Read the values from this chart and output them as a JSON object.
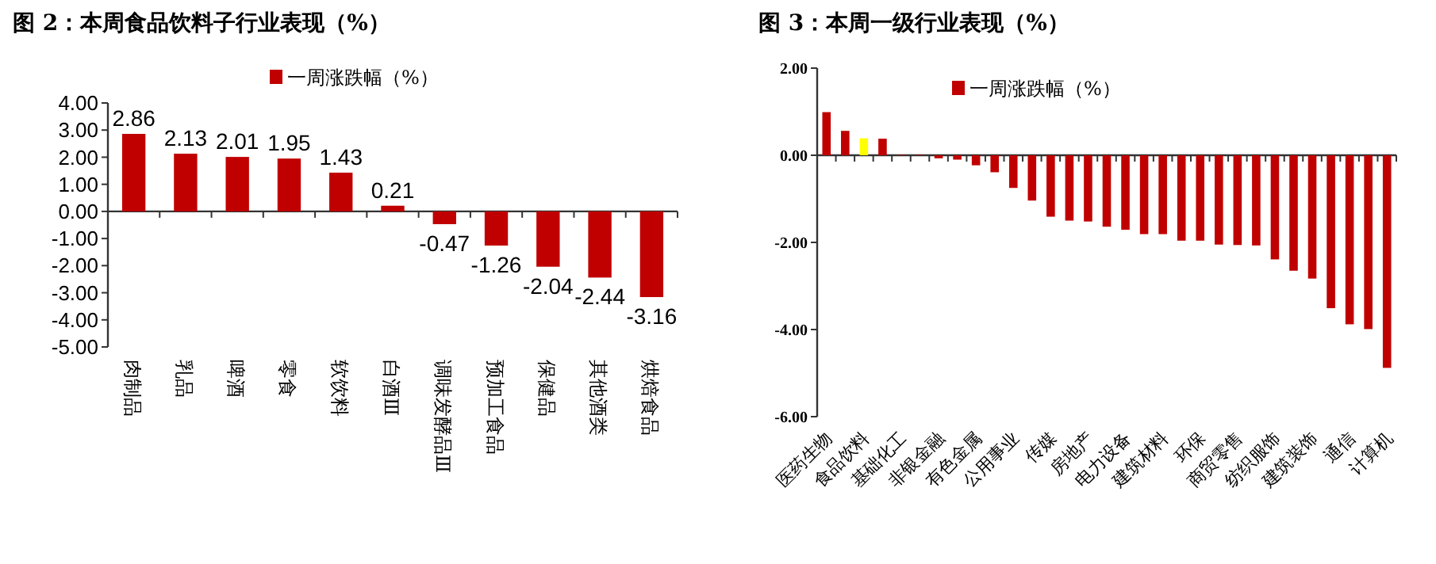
{
  "chart_data": [
    {
      "type": "bar",
      "title": "图 2：本周食品饮料子行业表现（%）",
      "categories": [
        "肉制品",
        "乳品",
        "啤酒",
        "零食",
        "软饮料",
        "白酒Ⅲ",
        "调味发酵品Ⅲ",
        "预加工食品",
        "保健品",
        "其他酒类",
        "烘焙食品"
      ],
      "series": [
        {
          "name": "一周涨跌幅（%）",
          "color": "#c00000",
          "values": [
            2.86,
            2.13,
            2.01,
            1.95,
            1.43,
            0.21,
            -0.47,
            -1.26,
            -2.04,
            -2.44,
            -3.16
          ]
        }
      ],
      "ylim": [
        -5,
        4
      ],
      "yticks": [
        {
          "value": -5,
          "label": "-5.00"
        },
        {
          "value": -4,
          "label": "-4.00"
        },
        {
          "value": -3,
          "label": "-3.00"
        },
        {
          "value": -2,
          "label": "-2.00"
        },
        {
          "value": -1,
          "label": "-1.00"
        },
        {
          "value": 0,
          "label": "0.00"
        },
        {
          "value": 1,
          "label": "1.00"
        },
        {
          "value": 2,
          "label": "2.00"
        },
        {
          "value": 3,
          "label": "3.00"
        },
        {
          "value": 4,
          "label": "4.00"
        }
      ],
      "data_labels": true,
      "legend": "top"
    },
    {
      "type": "bar",
      "title": "图 3：本周一级行业表现（%）",
      "categories": [
        "医药生物",
        null,
        "食品饮料",
        null,
        "基础化工",
        null,
        "非银金融",
        null,
        "有色金属",
        null,
        "公用事业",
        null,
        "传媒",
        null,
        "房地产",
        null,
        "电力设备",
        null,
        "建筑材料",
        null,
        "环保",
        null,
        "商贸零售",
        null,
        "纺织服饰",
        null,
        "建筑装饰",
        null,
        "通信",
        null,
        "计算机"
      ],
      "series": [
        {
          "name": "一周涨跌幅（%）",
          "color": "#c00000",
          "colors": [
            "#c00000",
            "#c00000",
            "#ffff00",
            "#c00000",
            "#c00000",
            "#c00000",
            "#c00000",
            "#c00000",
            "#c00000",
            "#c00000",
            "#c00000",
            "#c00000",
            "#c00000",
            "#c00000",
            "#c00000",
            "#c00000",
            "#c00000",
            "#c00000",
            "#c00000",
            "#c00000",
            "#c00000",
            "#c00000",
            "#c00000",
            "#c00000",
            "#c00000",
            "#c00000",
            "#c00000",
            "#c00000",
            "#c00000",
            "#c00000",
            "#c00000"
          ],
          "values": [
            0.99,
            0.56,
            0.39,
            0.38,
            0.01,
            0.01,
            -0.07,
            -0.1,
            -0.23,
            -0.39,
            -0.75,
            -1.04,
            -1.41,
            -1.5,
            -1.52,
            -1.64,
            -1.71,
            -1.81,
            -1.81,
            -1.96,
            -1.96,
            -2.05,
            -2.06,
            -2.07,
            -2.39,
            -2.65,
            -2.83,
            -3.51,
            -3.88,
            -3.99,
            -4.88
          ]
        }
      ],
      "ylim": [
        -6,
        2
      ],
      "yticks": [
        {
          "value": -6,
          "label": "-6.00"
        },
        {
          "value": -4,
          "label": "-4.00"
        },
        {
          "value": -2,
          "label": "-2.00"
        },
        {
          "value": 0,
          "label": "0.00"
        },
        {
          "value": 2,
          "label": "2.00"
        }
      ],
      "legend": "top"
    }
  ]
}
